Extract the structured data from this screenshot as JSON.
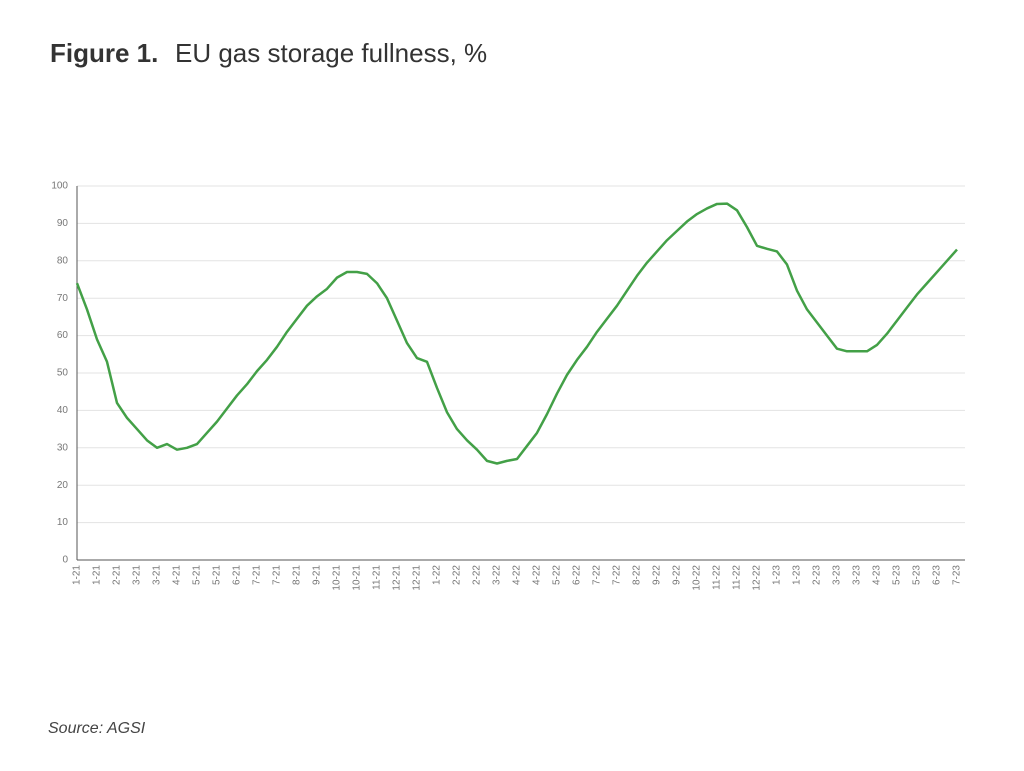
{
  "chart_data": {
    "type": "line",
    "figure_label": "Figure 1.",
    "title": "EU gas storage fullness, %",
    "source": "Source: AGSI",
    "categories": [
      "1-21",
      null,
      "1-21",
      null,
      "2-21",
      null,
      "3-21",
      null,
      "3-21",
      null,
      "4-21",
      null,
      "5-21",
      null,
      "5-21",
      null,
      "6-21",
      null,
      "7-21",
      null,
      "7-21",
      null,
      "8-21",
      null,
      "9-21",
      null,
      "10-21",
      null,
      "10-21",
      null,
      "11-21",
      null,
      "12-21",
      null,
      "12-21",
      null,
      "1-22",
      null,
      "2-22",
      null,
      "2-22",
      null,
      "3-22",
      null,
      "4-22",
      null,
      "4-22",
      null,
      "5-22",
      null,
      "6-22",
      null,
      "7-22",
      null,
      "7-22",
      null,
      "8-22",
      null,
      "9-22",
      null,
      "9-22",
      null,
      "10-22",
      null,
      "11-22",
      null,
      "11-22",
      null,
      "12-22",
      null,
      "1-23",
      null,
      "1-23",
      null,
      "2-23",
      null,
      "3-23",
      null,
      "3-23",
      null,
      "4-23",
      null,
      "5-23",
      null,
      "5-23",
      null,
      "6-23",
      null,
      "7-23"
    ],
    "series": [
      {
        "name": "EU gas storage fullness",
        "color": "#43a047",
        "values": [
          74,
          67,
          59,
          53,
          42,
          38,
          35,
          32,
          30,
          31,
          29.5,
          30,
          31,
          34,
          37,
          40.5,
          44,
          47,
          50.5,
          53.5,
          57,
          61,
          64.5,
          68,
          70.5,
          72.5,
          75.5,
          77,
          77,
          76.5,
          74,
          70,
          64,
          58,
          54,
          53,
          46,
          39.5,
          35,
          32,
          29.5,
          26.5,
          25.8,
          26.5,
          27,
          30.5,
          34,
          39,
          44.5,
          49.5,
          53.5,
          57,
          61,
          64.5,
          68,
          72,
          76,
          79.5,
          82.5,
          85.5,
          88,
          90.5,
          92.5,
          94,
          95.2,
          95.3,
          93.5,
          89,
          84,
          83.2,
          82.5,
          79,
          72,
          67,
          63.5,
          60,
          56.5,
          55.8,
          55.8,
          55.8,
          57.5,
          60.5,
          64,
          67.5,
          71,
          74,
          77,
          80,
          83
        ]
      }
    ],
    "ylim": [
      0,
      100
    ],
    "yticks": [
      0,
      10,
      20,
      30,
      40,
      50,
      60,
      70,
      80,
      90,
      100
    ],
    "grid": true
  }
}
